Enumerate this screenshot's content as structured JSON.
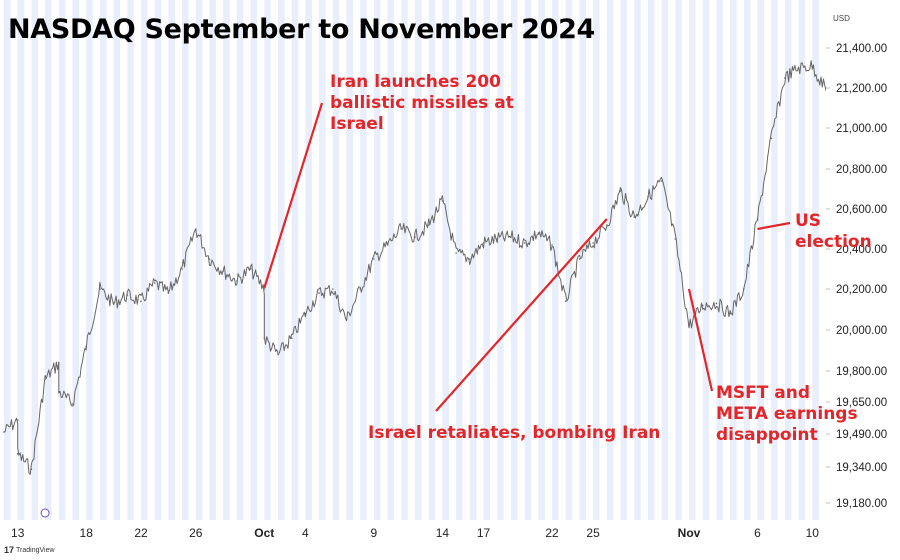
{
  "title": "NASDAQ September to November 2024",
  "currency": "USD",
  "brand": "TradingView",
  "colors": {
    "price": "#666666",
    "stripe": "#e8eefb",
    "annotation": "#e3262a",
    "axis_text": "#222222"
  },
  "annotations": [
    {
      "id": "iran-launch",
      "text": "Iran launches 200\nballistic missiles at\nIsrael"
    },
    {
      "id": "israel-retaliates",
      "text": "Israel retaliates, bombing Iran"
    },
    {
      "id": "us-election",
      "text": "US election"
    },
    {
      "id": "msft-meta",
      "text": "MSFT and\nMETA earnings\ndisappoint"
    }
  ],
  "chart_data": {
    "type": "line",
    "title": "NASDAQ September to November 2024",
    "xlabel": "",
    "ylabel": "",
    "y_scale": "log",
    "ylim": [
      19100,
      21520
    ],
    "y_ticks": [
      19180,
      19340,
      19490,
      19650,
      19800,
      20000,
      20200,
      20400,
      20600,
      20800,
      21000,
      21200,
      21400
    ],
    "y_tick_labels": [
      "19,180.00",
      "19,340.00",
      "19,490.00",
      "19,650.00",
      "19,800.00",
      "20,000.00",
      "20,200.00",
      "20,400.00",
      "20,600.00",
      "20,800.00",
      "21,000.00",
      "21,200.00",
      "21,400.00"
    ],
    "x_tick_labels": [
      "13",
      "18",
      "22",
      "26",
      "Oct",
      "4",
      "9",
      "14",
      "17",
      "22",
      "25",
      "Nov",
      "6",
      "10"
    ],
    "x_ticks": [
      "2024-09-13",
      "2024-09-18",
      "2024-09-22",
      "2024-09-26",
      "2024-10-01",
      "2024-10-04",
      "2024-10-09",
      "2024-10-14",
      "2024-10-17",
      "2024-10-22",
      "2024-10-25",
      "2024-11-01",
      "2024-11-06",
      "2024-11-10"
    ],
    "xlim": [
      "2024-09-12",
      "2024-11-11"
    ],
    "series": [
      {
        "values": [
          [
            "2024-09-12",
            19500
          ],
          [
            "2024-09-13",
            19560
          ],
          [
            "2024-09-13",
            19400
          ],
          [
            "2024-09-14",
            19330
          ],
          [
            "2024-09-15",
            19760
          ],
          [
            "2024-09-16",
            19840
          ],
          [
            "2024-09-16",
            19700
          ],
          [
            "2024-09-17",
            19640
          ],
          [
            "2024-09-18",
            19920
          ],
          [
            "2024-09-19",
            20200
          ],
          [
            "2024-09-20",
            20130
          ],
          [
            "2024-09-21",
            20170
          ],
          [
            "2024-09-22",
            20140
          ],
          [
            "2024-09-23",
            20230
          ],
          [
            "2024-09-24",
            20180
          ],
          [
            "2024-09-25",
            20300
          ],
          [
            "2024-09-26",
            20500
          ],
          [
            "2024-09-27",
            20350
          ],
          [
            "2024-09-28",
            20290
          ],
          [
            "2024-09-29",
            20240
          ],
          [
            "2024-09-30",
            20300
          ],
          [
            "2024-10-01",
            20200
          ],
          [
            "2024-10-01",
            19960
          ],
          [
            "2024-10-02",
            19880
          ],
          [
            "2024-10-03",
            19960
          ],
          [
            "2024-10-04",
            20080
          ],
          [
            "2024-10-05",
            20180
          ],
          [
            "2024-10-06",
            20200
          ],
          [
            "2024-10-07",
            20050
          ],
          [
            "2024-10-08",
            20200
          ],
          [
            "2024-10-09",
            20350
          ],
          [
            "2024-10-10",
            20420
          ],
          [
            "2024-10-11",
            20500
          ],
          [
            "2024-10-12",
            20460
          ],
          [
            "2024-10-13",
            20520
          ],
          [
            "2024-10-14",
            20640
          ],
          [
            "2024-10-15",
            20380
          ],
          [
            "2024-10-16",
            20350
          ],
          [
            "2024-10-17",
            20430
          ],
          [
            "2024-10-18",
            20450
          ],
          [
            "2024-10-19",
            20460
          ],
          [
            "2024-10-20",
            20430
          ],
          [
            "2024-10-21",
            20480
          ],
          [
            "2024-10-22",
            20420
          ],
          [
            "2024-10-23",
            20140
          ],
          [
            "2024-10-24",
            20350
          ],
          [
            "2024-10-25",
            20430
          ],
          [
            "2024-10-26",
            20520
          ],
          [
            "2024-10-27",
            20690
          ],
          [
            "2024-10-28",
            20560
          ],
          [
            "2024-10-29",
            20660
          ],
          [
            "2024-10-30",
            20740
          ],
          [
            "2024-10-31",
            20450
          ],
          [
            "2024-11-01",
            20020
          ],
          [
            "2024-11-02",
            20120
          ],
          [
            "2024-11-03",
            20130
          ],
          [
            "2024-11-04",
            20080
          ],
          [
            "2024-11-05",
            20200
          ],
          [
            "2024-11-06",
            20550
          ],
          [
            "2024-11-07",
            20950
          ],
          [
            "2024-11-08",
            21250
          ],
          [
            "2024-11-09",
            21300
          ],
          [
            "2024-11-10",
            21310
          ],
          [
            "2024-11-11",
            21190
          ]
        ]
      }
    ],
    "grid": false,
    "legend": "none"
  }
}
